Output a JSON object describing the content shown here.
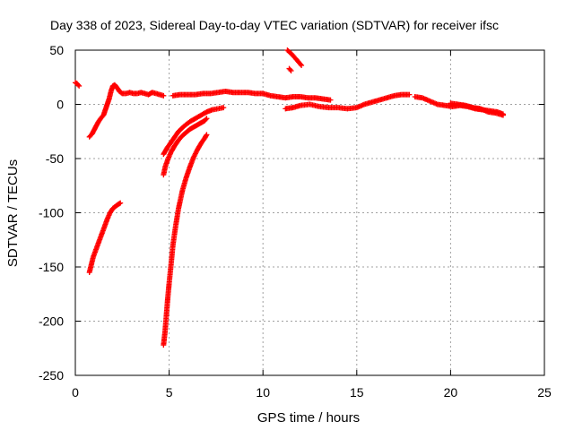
{
  "chart_data": {
    "type": "scatter",
    "title": "Day 338 of 2023, Sidereal Day-to-day VTEC variation (SDTVAR) for receiver ifsc",
    "xlabel": "GPS time / hours",
    "ylabel": "SDTVAR / TECUs",
    "xlim": [
      0,
      25
    ],
    "ylim": [
      -250,
      50
    ],
    "xticks": [
      0,
      5,
      10,
      15,
      20,
      25
    ],
    "yticks": [
      -250,
      -200,
      -150,
      -100,
      -50,
      0,
      50
    ],
    "grid": true,
    "marker": "plus",
    "color": "#ff0000",
    "series": [
      {
        "x": [
          0.0,
          0.1,
          0.2
        ],
        "y": [
          20,
          19,
          17
        ]
      },
      {
        "x": [
          0.75,
          0.9,
          1.05,
          1.2,
          1.35,
          1.5,
          1.6,
          1.7,
          1.8,
          1.9,
          2.0,
          2.1,
          2.2,
          2.35,
          2.5,
          2.7,
          2.9,
          3.1,
          3.3,
          3.5,
          3.7,
          3.9,
          4.1,
          4.3,
          4.5,
          4.7
        ],
        "y": [
          -30,
          -27,
          -22,
          -17,
          -13,
          -10,
          -5,
          0,
          5,
          12,
          17,
          18,
          16,
          12,
          10,
          10,
          11,
          10,
          10,
          11,
          10,
          9,
          11,
          10,
          9,
          8
        ]
      },
      {
        "x": [
          0.75,
          0.85,
          0.95,
          1.1,
          1.25,
          1.4,
          1.55,
          1.7,
          1.85,
          2.0,
          2.15,
          2.3,
          2.4
        ],
        "y": [
          -155,
          -148,
          -141,
          -134,
          -127,
          -120,
          -113,
          -106,
          -100,
          -96,
          -94,
          -92,
          -91
        ]
      },
      {
        "x": [
          4.7,
          4.78,
          4.85,
          4.92,
          5.0,
          5.1,
          5.2,
          5.35,
          5.5,
          5.7,
          5.9,
          6.1,
          6.3,
          6.5,
          6.7,
          6.9,
          7.0
        ],
        "y": [
          -222,
          -210,
          -195,
          -180,
          -165,
          -148,
          -130,
          -112,
          -96,
          -80,
          -68,
          -58,
          -49,
          -42,
          -36,
          -31,
          -28
        ]
      },
      {
        "x": [
          4.7,
          4.8,
          4.95,
          5.1,
          5.3,
          5.5,
          5.7,
          5.9,
          6.1,
          6.3,
          6.5,
          6.7,
          6.9,
          7.0
        ],
        "y": [
          -65,
          -57,
          -50,
          -44,
          -38,
          -33,
          -29,
          -26,
          -23,
          -21,
          -19,
          -17,
          -15,
          -13
        ]
      },
      {
        "x": [
          4.7,
          4.9,
          5.1,
          5.3,
          5.5,
          5.8,
          6.1,
          6.4,
          6.7,
          7.0,
          7.3,
          7.6,
          7.9
        ],
        "y": [
          -46,
          -40,
          -35,
          -30,
          -25,
          -20,
          -16,
          -13,
          -10,
          -7,
          -5,
          -4,
          -3
        ]
      },
      {
        "x": [
          5.2,
          5.6,
          6.0,
          6.4,
          6.8,
          7.2,
          7.6,
          8.0,
          8.4,
          8.8,
          9.2,
          9.6,
          10.0,
          10.4,
          10.8,
          11.2,
          11.6,
          12.0,
          12.4,
          12.8,
          13.2,
          13.6
        ],
        "y": [
          8,
          9,
          9,
          9,
          10,
          10,
          11,
          12,
          11,
          11,
          11,
          10,
          10,
          8,
          7,
          6,
          7,
          7,
          6,
          6,
          5,
          4
        ]
      },
      {
        "x": [
          11.2,
          11.6,
          12.0,
          12.5,
          13.0,
          13.5,
          14.0,
          14.5,
          15.0,
          15.4,
          15.8,
          16.2,
          16.6,
          17.0,
          17.4,
          17.8
        ],
        "y": [
          -4,
          -3,
          -1,
          0,
          -2,
          -3,
          -3,
          -4,
          -3,
          0,
          2,
          4,
          6,
          8,
          9,
          9
        ]
      },
      {
        "x": [
          11.3,
          11.5,
          11.7,
          11.9,
          12.05
        ],
        "y": [
          50,
          47,
          43,
          39,
          36
        ]
      },
      {
        "x": [
          11.4,
          11.5
        ],
        "y": [
          33,
          31
        ]
      },
      {
        "x": [
          18.1,
          18.5,
          18.9,
          19.3,
          19.7,
          20.1,
          20.5,
          20.9,
          21.3,
          21.7,
          22.1,
          22.5,
          22.8
        ],
        "y": [
          7,
          6,
          3,
          0,
          -1,
          -2,
          -1,
          -2,
          -4,
          -5,
          -6,
          -7,
          -9
        ]
      },
      {
        "x": [
          20.0,
          20.4,
          20.8,
          21.2,
          21.6,
          22.0,
          22.4,
          22.8
        ],
        "y": [
          1,
          0,
          -1,
          -3,
          -4,
          -7,
          -8,
          -10
        ]
      }
    ]
  }
}
